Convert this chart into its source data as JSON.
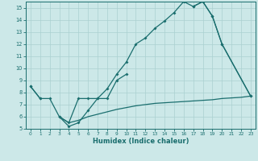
{
  "xlabel": "Humidex (Indice chaleur)",
  "bg_color": "#cce8e8",
  "line_color": "#1a6e6e",
  "grid_color": "#aad0d0",
  "xlim": [
    -0.5,
    23.5
  ],
  "ylim": [
    5,
    15.5
  ],
  "xticks": [
    0,
    1,
    2,
    3,
    4,
    5,
    6,
    7,
    8,
    9,
    10,
    11,
    12,
    13,
    14,
    15,
    16,
    17,
    18,
    19,
    20,
    21,
    22,
    23
  ],
  "yticks": [
    5,
    6,
    7,
    8,
    9,
    10,
    11,
    12,
    13,
    14,
    15
  ],
  "line1_x": [
    0,
    1,
    2,
    3,
    4,
    5,
    6,
    7,
    8,
    9,
    10,
    11,
    12,
    13,
    14,
    15,
    16,
    17,
    18,
    19,
    20,
    23
  ],
  "line1_y": [
    8.5,
    7.5,
    7.5,
    6.0,
    5.5,
    7.5,
    7.5,
    7.5,
    8.3,
    9.5,
    10.5,
    12.0,
    12.5,
    13.3,
    13.9,
    14.6,
    15.5,
    15.1,
    15.5,
    14.3,
    12.0,
    7.7
  ],
  "line2_segs": [
    {
      "x": [
        0,
        1
      ],
      "y": [
        8.5,
        7.5
      ]
    },
    {
      "x": [
        3,
        4,
        5,
        6,
        7,
        8,
        9,
        10
      ],
      "y": [
        6.0,
        5.2,
        5.5,
        6.5,
        7.5,
        7.5,
        9.0,
        9.5
      ]
    },
    {
      "x": [
        17,
        18,
        19,
        20,
        23
      ],
      "y": [
        15.1,
        15.5,
        14.3,
        12.0,
        7.7
      ]
    }
  ],
  "line3_x": [
    3,
    4,
    5,
    6,
    7,
    8,
    9,
    10,
    11,
    12,
    13,
    14,
    15,
    16,
    17,
    18,
    19,
    20,
    21,
    22,
    23
  ],
  "line3_y": [
    6.0,
    5.5,
    5.7,
    6.0,
    6.2,
    6.4,
    6.6,
    6.75,
    6.9,
    7.0,
    7.1,
    7.15,
    7.2,
    7.25,
    7.3,
    7.35,
    7.4,
    7.5,
    7.55,
    7.6,
    7.7
  ]
}
